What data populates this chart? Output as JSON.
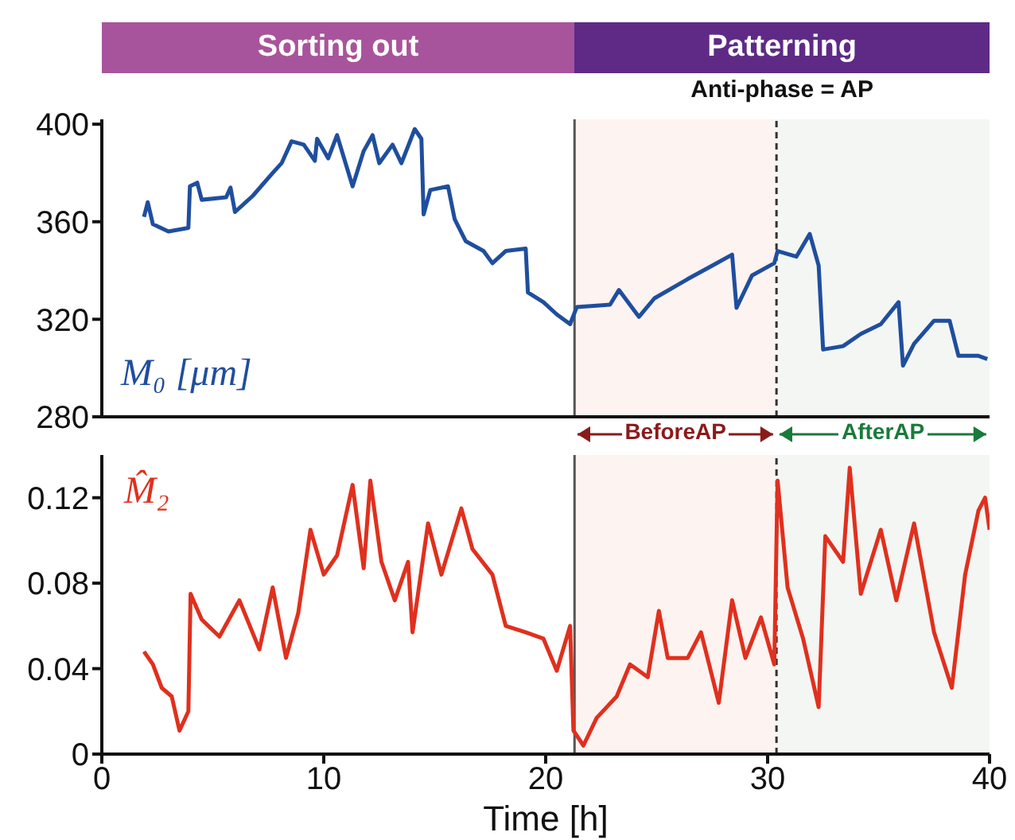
{
  "chart_data": [
    {
      "type": "line",
      "annotations": [
        "Sorting out",
        "Patterning",
        "Anti-phase = AP"
      ],
      "x": [
        1.9,
        2.07,
        2.3,
        3.0,
        3.9,
        3.97,
        4.3,
        4.5,
        5.6,
        5.8,
        6.0,
        6.8,
        7.7,
        8.1,
        8.55,
        9.1,
        9.6,
        9.7,
        10.2,
        10.6,
        11.3,
        11.8,
        12.2,
        12.5,
        13.1,
        13.5,
        14.1,
        14.4,
        14.5,
        14.8,
        15.6,
        15.9,
        16.4,
        17.2,
        17.6,
        18.2,
        19.1,
        19.2,
        19.9,
        20.5,
        21.1,
        21.4,
        22.9,
        23.3,
        24.2,
        24.9,
        26.4,
        27.5,
        28.4,
        28.6,
        29.3,
        30.3,
        30.45,
        31.3,
        31.9,
        32.3,
        32.5,
        33.4,
        34.2,
        35.1,
        35.9,
        36.1,
        36.6,
        37.5,
        38.2,
        38.6,
        39.5,
        39.9
      ],
      "series": [
        {
          "name": "M₀ [μm]",
          "color": "#1f4e9e",
          "values": [
            362,
            368,
            359,
            356,
            357.5,
            374.5,
            376,
            369,
            370,
            374,
            364,
            370.6,
            380,
            384,
            393,
            391.6,
            385,
            394,
            386,
            395.5,
            374.5,
            389,
            395.5,
            384,
            391.6,
            384,
            398,
            394,
            363,
            373,
            374.5,
            361,
            352,
            348,
            343,
            348,
            349,
            331,
            327,
            322,
            318,
            325,
            326,
            332,
            321,
            328.6,
            336.5,
            342,
            346.5,
            324.7,
            338,
            343,
            348,
            345.7,
            355,
            342,
            307.6,
            309,
            314,
            318,
            327,
            301,
            310,
            319.4,
            319.4,
            305,
            305,
            303.7
          ]
        }
      ],
      "xlim": [
        0,
        40
      ],
      "xticks": [
        0,
        10,
        20,
        30,
        40
      ],
      "ylim": [
        280,
        402
      ],
      "yticks": [
        280,
        320,
        360,
        400
      ],
      "tick_labels": "y",
      "marker": "none",
      "ref_lines": [
        {
          "axis": "x",
          "value": 21.3,
          "color": "#555555",
          "line_style": "solid"
        },
        {
          "axis": "x",
          "value": 30.4,
          "color": "#333333",
          "line_style": "dashed"
        }
      ],
      "bands": [
        {
          "axis": "x",
          "from": 21.3,
          "to": 30.4,
          "label": "BeforeAP",
          "color": "#fdf3f1"
        },
        {
          "axis": "x",
          "from": 30.4,
          "to": 40,
          "label": "AfterAP",
          "color": "#f3f6f3"
        }
      ]
    },
    {
      "type": "line",
      "xlabel": "Time [h]",
      "x": [
        1.9,
        2.3,
        2.7,
        3.15,
        3.5,
        3.9,
        4.0,
        4.5,
        5.3,
        6.2,
        7.1,
        7.7,
        8.3,
        8.85,
        9.4,
        10.0,
        10.6,
        11.3,
        11.8,
        12.1,
        12.6,
        13.2,
        13.8,
        14.0,
        14.7,
        15.3,
        16.2,
        16.7,
        17.6,
        18.2,
        19.1,
        19.9,
        20.5,
        21.1,
        21.25,
        21.7,
        22.3,
        23.2,
        23.8,
        24.6,
        25.1,
        25.5,
        26.4,
        27.0,
        27.8,
        28.4,
        29.0,
        29.7,
        30.3,
        30.45,
        30.9,
        31.6,
        32.3,
        32.6,
        33.4,
        33.7,
        34.2,
        35.1,
        35.8,
        36.6,
        37.5,
        38.3,
        38.9,
        39.5,
        39.8,
        40.0
      ],
      "series": [
        {
          "name": "M̂₂",
          "color": "#e0301e",
          "values": [
            0.048,
            0.042,
            0.031,
            0.027,
            0.011,
            0.02,
            0.075,
            0.063,
            0.055,
            0.072,
            0.049,
            0.078,
            0.045,
            0.066,
            0.105,
            0.084,
            0.093,
            0.126,
            0.087,
            0.128,
            0.09,
            0.072,
            0.09,
            0.057,
            0.108,
            0.084,
            0.115,
            0.096,
            0.084,
            0.06,
            0.057,
            0.054,
            0.039,
            0.06,
            0.011,
            0.004,
            0.017,
            0.027,
            0.042,
            0.036,
            0.067,
            0.045,
            0.045,
            0.057,
            0.024,
            0.072,
            0.045,
            0.064,
            0.042,
            0.128,
            0.078,
            0.054,
            0.022,
            0.102,
            0.09,
            0.134,
            0.075,
            0.105,
            0.072,
            0.108,
            0.057,
            0.031,
            0.084,
            0.114,
            0.12,
            0.105
          ]
        }
      ],
      "xlim": [
        0,
        40
      ],
      "xticks": [
        0,
        10,
        20,
        30,
        40
      ],
      "ylim": [
        0,
        0.14
      ],
      "yticks": [
        0,
        0.04,
        0.08,
        0.12
      ],
      "marker": "none",
      "ref_lines": [
        {
          "axis": "x",
          "value": 21.3,
          "color": "#555555",
          "line_style": "solid"
        },
        {
          "axis": "x",
          "value": 30.4,
          "color": "#333333",
          "line_style": "dashed"
        }
      ],
      "bands": [
        {
          "axis": "x",
          "from": 21.3,
          "to": 30.4,
          "color": "#fdf3f1"
        },
        {
          "axis": "x",
          "from": 30.4,
          "to": 40,
          "color": "#f3f6f3"
        }
      ]
    }
  ]
}
